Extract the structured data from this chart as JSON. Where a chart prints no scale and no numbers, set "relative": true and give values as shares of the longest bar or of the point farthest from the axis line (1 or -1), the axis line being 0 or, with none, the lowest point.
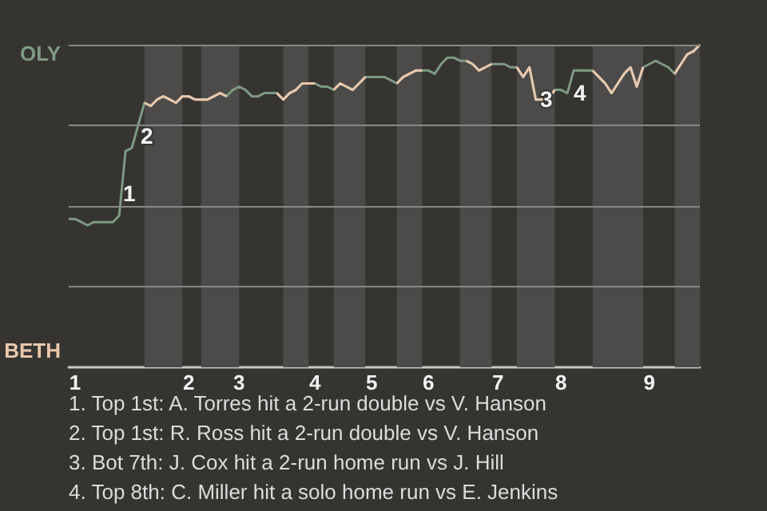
{
  "chart_data": {
    "type": "line",
    "relative": true,
    "categories": [
      null,
      "1",
      null,
      null,
      null,
      null,
      null,
      null,
      null,
      null,
      null,
      null,
      null,
      null,
      null,
      null,
      null,
      null,
      null,
      "2",
      null,
      null,
      null,
      null,
      null,
      null,
      null,
      "3",
      null,
      null,
      null,
      null,
      null,
      null,
      null,
      null,
      null,
      null,
      null,
      "4",
      null,
      null,
      null,
      null,
      null,
      null,
      null,
      null,
      "5",
      null,
      null,
      null,
      null,
      null,
      null,
      null,
      null,
      "6",
      null,
      null,
      null,
      null,
      null,
      null,
      null,
      null,
      null,
      null,
      "7",
      null,
      null,
      null,
      null,
      null,
      null,
      null,
      null,
      null,
      "8",
      null,
      null,
      null,
      null,
      null,
      null,
      null,
      null,
      null,
      null,
      null,
      null,
      null,
      "9",
      null,
      null,
      null,
      null,
      null,
      null,
      null,
      null
    ],
    "series": [
      {
        "color": "#7d9a82",
        "values": [
          0.46,
          0.46,
          0.45,
          0.44,
          0.45,
          0.45,
          0.45,
          0.45,
          0.47,
          0.67,
          0.68,
          0.75,
          0.82,
          0.81,
          0.83,
          0.84,
          0.83,
          0.82,
          0.84,
          0.84,
          0.83,
          0.83,
          0.83,
          0.84,
          0.85,
          0.84,
          0.86,
          0.87,
          0.86,
          0.84,
          0.84,
          0.85,
          0.85,
          0.85,
          0.83,
          0.85,
          0.86,
          0.88,
          0.88,
          0.88,
          0.87,
          0.87,
          0.86,
          0.88,
          0.87,
          0.86,
          0.88,
          0.9,
          0.9,
          0.9,
          0.9,
          0.89,
          0.88,
          0.9,
          0.91,
          0.92,
          0.92,
          0.92,
          0.91,
          0.94,
          0.96,
          0.96,
          0.95,
          0.95,
          0.94,
          0.92,
          0.93,
          0.94,
          0.94,
          0.94,
          0.93,
          0.93,
          0.9,
          0.93,
          0.83,
          0.83,
          0.83,
          0.86,
          0.86,
          0.85,
          0.92,
          0.92,
          0.92,
          0.92,
          0.9,
          0.88,
          0.85,
          0.88,
          0.91,
          0.93,
          0.87,
          0.93,
          0.94,
          0.95,
          0.94,
          0.93,
          0.91,
          0.94,
          0.97,
          0.98,
          1
        ]
      },
      {
        "color": "#e9c8ae",
        "values": [
          null,
          null,
          null,
          null,
          null,
          null,
          null,
          null,
          null,
          null,
          null,
          null,
          0.82,
          0.81,
          0.83,
          0.84,
          0.83,
          0.82,
          0.84,
          0.84,
          0.83,
          0.83,
          0.83,
          0.84,
          0.85,
          0.84,
          null,
          null,
          null,
          null,
          null,
          null,
          null,
          0.85,
          0.83,
          0.85,
          0.86,
          0.88,
          0.88,
          0.88,
          null,
          null,
          0.86,
          0.88,
          0.87,
          0.86,
          0.88,
          0.9,
          null,
          null,
          null,
          null,
          0.88,
          0.9,
          0.91,
          0.92,
          0.92,
          null,
          null,
          null,
          null,
          null,
          null,
          0.95,
          0.94,
          0.92,
          0.93,
          0.94,
          null,
          null,
          null,
          0.93,
          0.9,
          0.93,
          0.83,
          0.83,
          0.83,
          0.86,
          null,
          null,
          null,
          null,
          null,
          0.92,
          0.9,
          0.88,
          0.85,
          0.88,
          0.91,
          0.93,
          0.87,
          0.93,
          null,
          null,
          null,
          null,
          0.91,
          0.94,
          0.97,
          0.98,
          1
        ]
      }
    ],
    "marker": "none",
    "ref_lines": [
      {
        "axis": "y",
        "value": 0.25,
        "color": "#8a8886"
      },
      {
        "axis": "y",
        "value": 0.5,
        "color": "#8a8886"
      },
      {
        "axis": "y",
        "value": 0.75,
        "color": "#8a8886"
      },
      {
        "axis": "y",
        "value": 1,
        "color": "#8a8886"
      }
    ],
    "annotations": [
      "OLY",
      "BETH",
      "1",
      "2",
      "3",
      "4",
      "1. Top 1st: A. Torres hit a 2-run double vs V. Hanson",
      "2. Top 1st: R. Ross hit a 2-run double vs V. Hanson",
      "3. Bot 7th: J. Cox hit a 2-run home run vs J. Hill",
      "4. Top 8th: C. Miller hit a solo home run vs E. Jenkins"
    ]
  }
}
